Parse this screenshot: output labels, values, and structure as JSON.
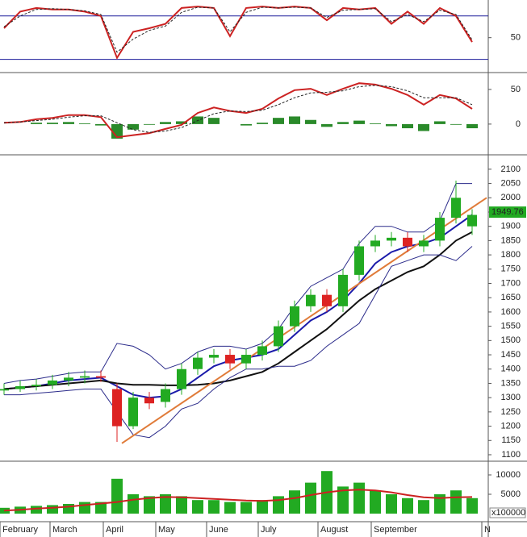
{
  "chart_data": [
    {
      "type": "line",
      "ylim": [
        4,
        102
      ],
      "yticks": [
        50
      ],
      "hlines": [
        80,
        20
      ],
      "hline_color": "#1a1a9a",
      "series": [
        {
          "color": "#cc2222",
          "values": [
            63,
            86,
            91,
            89,
            89,
            86,
            80,
            22,
            58,
            63,
            69,
            91,
            93,
            91,
            52,
            91,
            93,
            91,
            93,
            91,
            74,
            91,
            89,
            91,
            69,
            86,
            69,
            91,
            80,
            44
          ]
        },
        {
          "color": "#222222",
          "dash": true,
          "values": [
            65,
            80,
            89,
            90,
            89,
            87,
            82,
            30,
            48,
            60,
            66,
            85,
            92,
            91,
            58,
            85,
            92,
            91,
            92,
            91,
            78,
            88,
            89,
            90,
            72,
            82,
            72,
            88,
            82,
            47
          ]
        }
      ]
    },
    {
      "type": "macd",
      "ylim": [
        -42,
        72
      ],
      "yticks": [
        0,
        50
      ],
      "hist_color": "#2a8a2a",
      "histogram": [
        0,
        0,
        2,
        2,
        3,
        1,
        -2,
        -21,
        -8,
        -1,
        3,
        4,
        11,
        9,
        0,
        -2,
        2,
        9,
        11,
        6,
        -4,
        3,
        5,
        1,
        -3,
        -6,
        -10,
        4,
        -1,
        -6
      ],
      "series": [
        {
          "color": "#cc2222",
          "values": [
            2,
            3,
            7,
            9,
            13,
            13,
            10,
            -19,
            -16,
            -13,
            -7,
            -1,
            16,
            24,
            19,
            16,
            22,
            37,
            49,
            51,
            42,
            51,
            59,
            57,
            51,
            42,
            28,
            42,
            37,
            22
          ]
        },
        {
          "color": "#222222",
          "dash": true,
          "values": [
            2,
            3,
            5,
            7,
            10,
            12,
            12,
            2,
            -8,
            -12,
            -10,
            -5,
            5,
            15,
            19,
            18,
            20,
            28,
            38,
            45,
            46,
            48,
            54,
            56,
            54,
            48,
            38,
            38,
            38,
            28
          ]
        }
      ]
    },
    {
      "type": "candlestick",
      "ylim": [
        1083,
        2142
      ],
      "yticks": [
        1100,
        1150,
        1200,
        1250,
        1300,
        1350,
        1400,
        1450,
        1500,
        1550,
        1600,
        1650,
        1700,
        1750,
        1800,
        1850,
        1900,
        1950,
        2000,
        2050,
        2100
      ],
      "up_color": "#22aa22",
      "down_color": "#dd2222",
      "open": [
        1325,
        1330,
        1340,
        1345,
        1360,
        1370,
        1375,
        1330,
        1200,
        1300,
        1285,
        1330,
        1400,
        1440,
        1450,
        1420,
        1450,
        1480,
        1550,
        1620,
        1660,
        1620,
        1730,
        1830,
        1850,
        1860,
        1830,
        1850,
        1930,
        1900
      ],
      "high": [
        1350,
        1360,
        1365,
        1380,
        1390,
        1395,
        1395,
        1350,
        1320,
        1320,
        1350,
        1420,
        1460,
        1470,
        1470,
        1470,
        1500,
        1570,
        1640,
        1680,
        1680,
        1750,
        1850,
        1870,
        1880,
        1880,
        1870,
        1950,
        2060,
        1960
      ],
      "low": [
        1310,
        1320,
        1325,
        1330,
        1340,
        1350,
        1355,
        1145,
        1190,
        1260,
        1265,
        1310,
        1380,
        1420,
        1400,
        1400,
        1430,
        1460,
        1530,
        1600,
        1600,
        1600,
        1710,
        1810,
        1830,
        1810,
        1810,
        1830,
        1910,
        1870
      ],
      "close": [
        1330,
        1340,
        1345,
        1360,
        1370,
        1375,
        1370,
        1200,
        1300,
        1280,
        1330,
        1400,
        1440,
        1450,
        1420,
        1450,
        1480,
        1550,
        1620,
        1660,
        1620,
        1730,
        1830,
        1850,
        1860,
        1830,
        1850,
        1930,
        2000,
        1940
      ],
      "series": [
        {
          "color": "#1a1aaa",
          "width": 2,
          "values": [
            1330,
            1335,
            1340,
            1350,
            1360,
            1365,
            1370,
            1340,
            1310,
            1300,
            1305,
            1330,
            1370,
            1410,
            1430,
            1440,
            1450,
            1470,
            1520,
            1570,
            1600,
            1640,
            1700,
            1770,
            1810,
            1830,
            1840,
            1860,
            1900,
            1940
          ]
        },
        {
          "color": "#111111",
          "width": 2,
          "values": [
            1330,
            1335,
            1340,
            1345,
            1350,
            1355,
            1360,
            1350,
            1345,
            1345,
            1343,
            1343,
            1345,
            1350,
            1360,
            1375,
            1390,
            1420,
            1460,
            1500,
            1540,
            1590,
            1640,
            1680,
            1710,
            1740,
            1760,
            1800,
            1850,
            1880
          ]
        },
        {
          "color": "#2a2a8a",
          "width": 1,
          "values": [
            1350,
            1360,
            1365,
            1375,
            1385,
            1390,
            1390,
            1490,
            1480,
            1450,
            1400,
            1420,
            1460,
            1480,
            1480,
            1470,
            1490,
            1540,
            1620,
            1690,
            1720,
            1750,
            1840,
            1900,
            1900,
            1880,
            1880,
            1920,
            2050,
            2050
          ]
        },
        {
          "color": "#2a2a8a",
          "width": 1,
          "values": [
            1310,
            1310,
            1315,
            1320,
            1325,
            1330,
            1330,
            1250,
            1170,
            1160,
            1200,
            1260,
            1280,
            1330,
            1370,
            1400,
            1400,
            1410,
            1410,
            1430,
            1480,
            1520,
            1560,
            1660,
            1760,
            1780,
            1800,
            1800,
            1780,
            1830
          ]
        }
      ],
      "trendline": {
        "color": "#e07b39",
        "x": [
          7.3,
          29.9
        ],
        "values": [
          1140,
          2000
        ]
      },
      "last_price": 1949.76,
      "last_price_color": "#22aa22"
    },
    {
      "type": "bar",
      "ylim": [
        -1667,
        12917
      ],
      "yticks": [
        5000,
        10000
      ],
      "color": "#22aa22",
      "volume_unit": "x100000",
      "values": [
        1500,
        1800,
        2000,
        2200,
        2500,
        3000,
        3000,
        9000,
        5000,
        4500,
        5000,
        4500,
        3500,
        3500,
        3000,
        3000,
        3500,
        4500,
        6000,
        8000,
        11000,
        7000,
        8000,
        6000,
        5000,
        4000,
        3500,
        5000,
        6000,
        4000
      ],
      "series": [
        {
          "color": "#cc2222",
          "values": [
            800,
            1000,
            1300,
            1500,
            1800,
            2200,
            2600,
            3000,
            3600,
            4000,
            4300,
            4200,
            4000,
            3800,
            3600,
            3400,
            3300,
            3500,
            4000,
            4800,
            5500,
            6000,
            6200,
            6000,
            5500,
            4800,
            4200,
            4000,
            4200,
            4300
          ]
        }
      ],
      "xlim": [
        -0.25,
        30
      ],
      "xticks": [
        {
          "value": -0.25,
          "label": "February"
        },
        {
          "value": 2.85,
          "label": "March"
        },
        {
          "value": 6.15,
          "label": "April"
        },
        {
          "value": 9.4,
          "label": "May"
        },
        {
          "value": 12.55,
          "label": "June"
        },
        {
          "value": 15.75,
          "label": "July"
        },
        {
          "value": 19.45,
          "label": "August"
        },
        {
          "value": 22.75,
          "label": "September"
        },
        {
          "value": 29.6,
          "label": "N"
        }
      ]
    }
  ]
}
